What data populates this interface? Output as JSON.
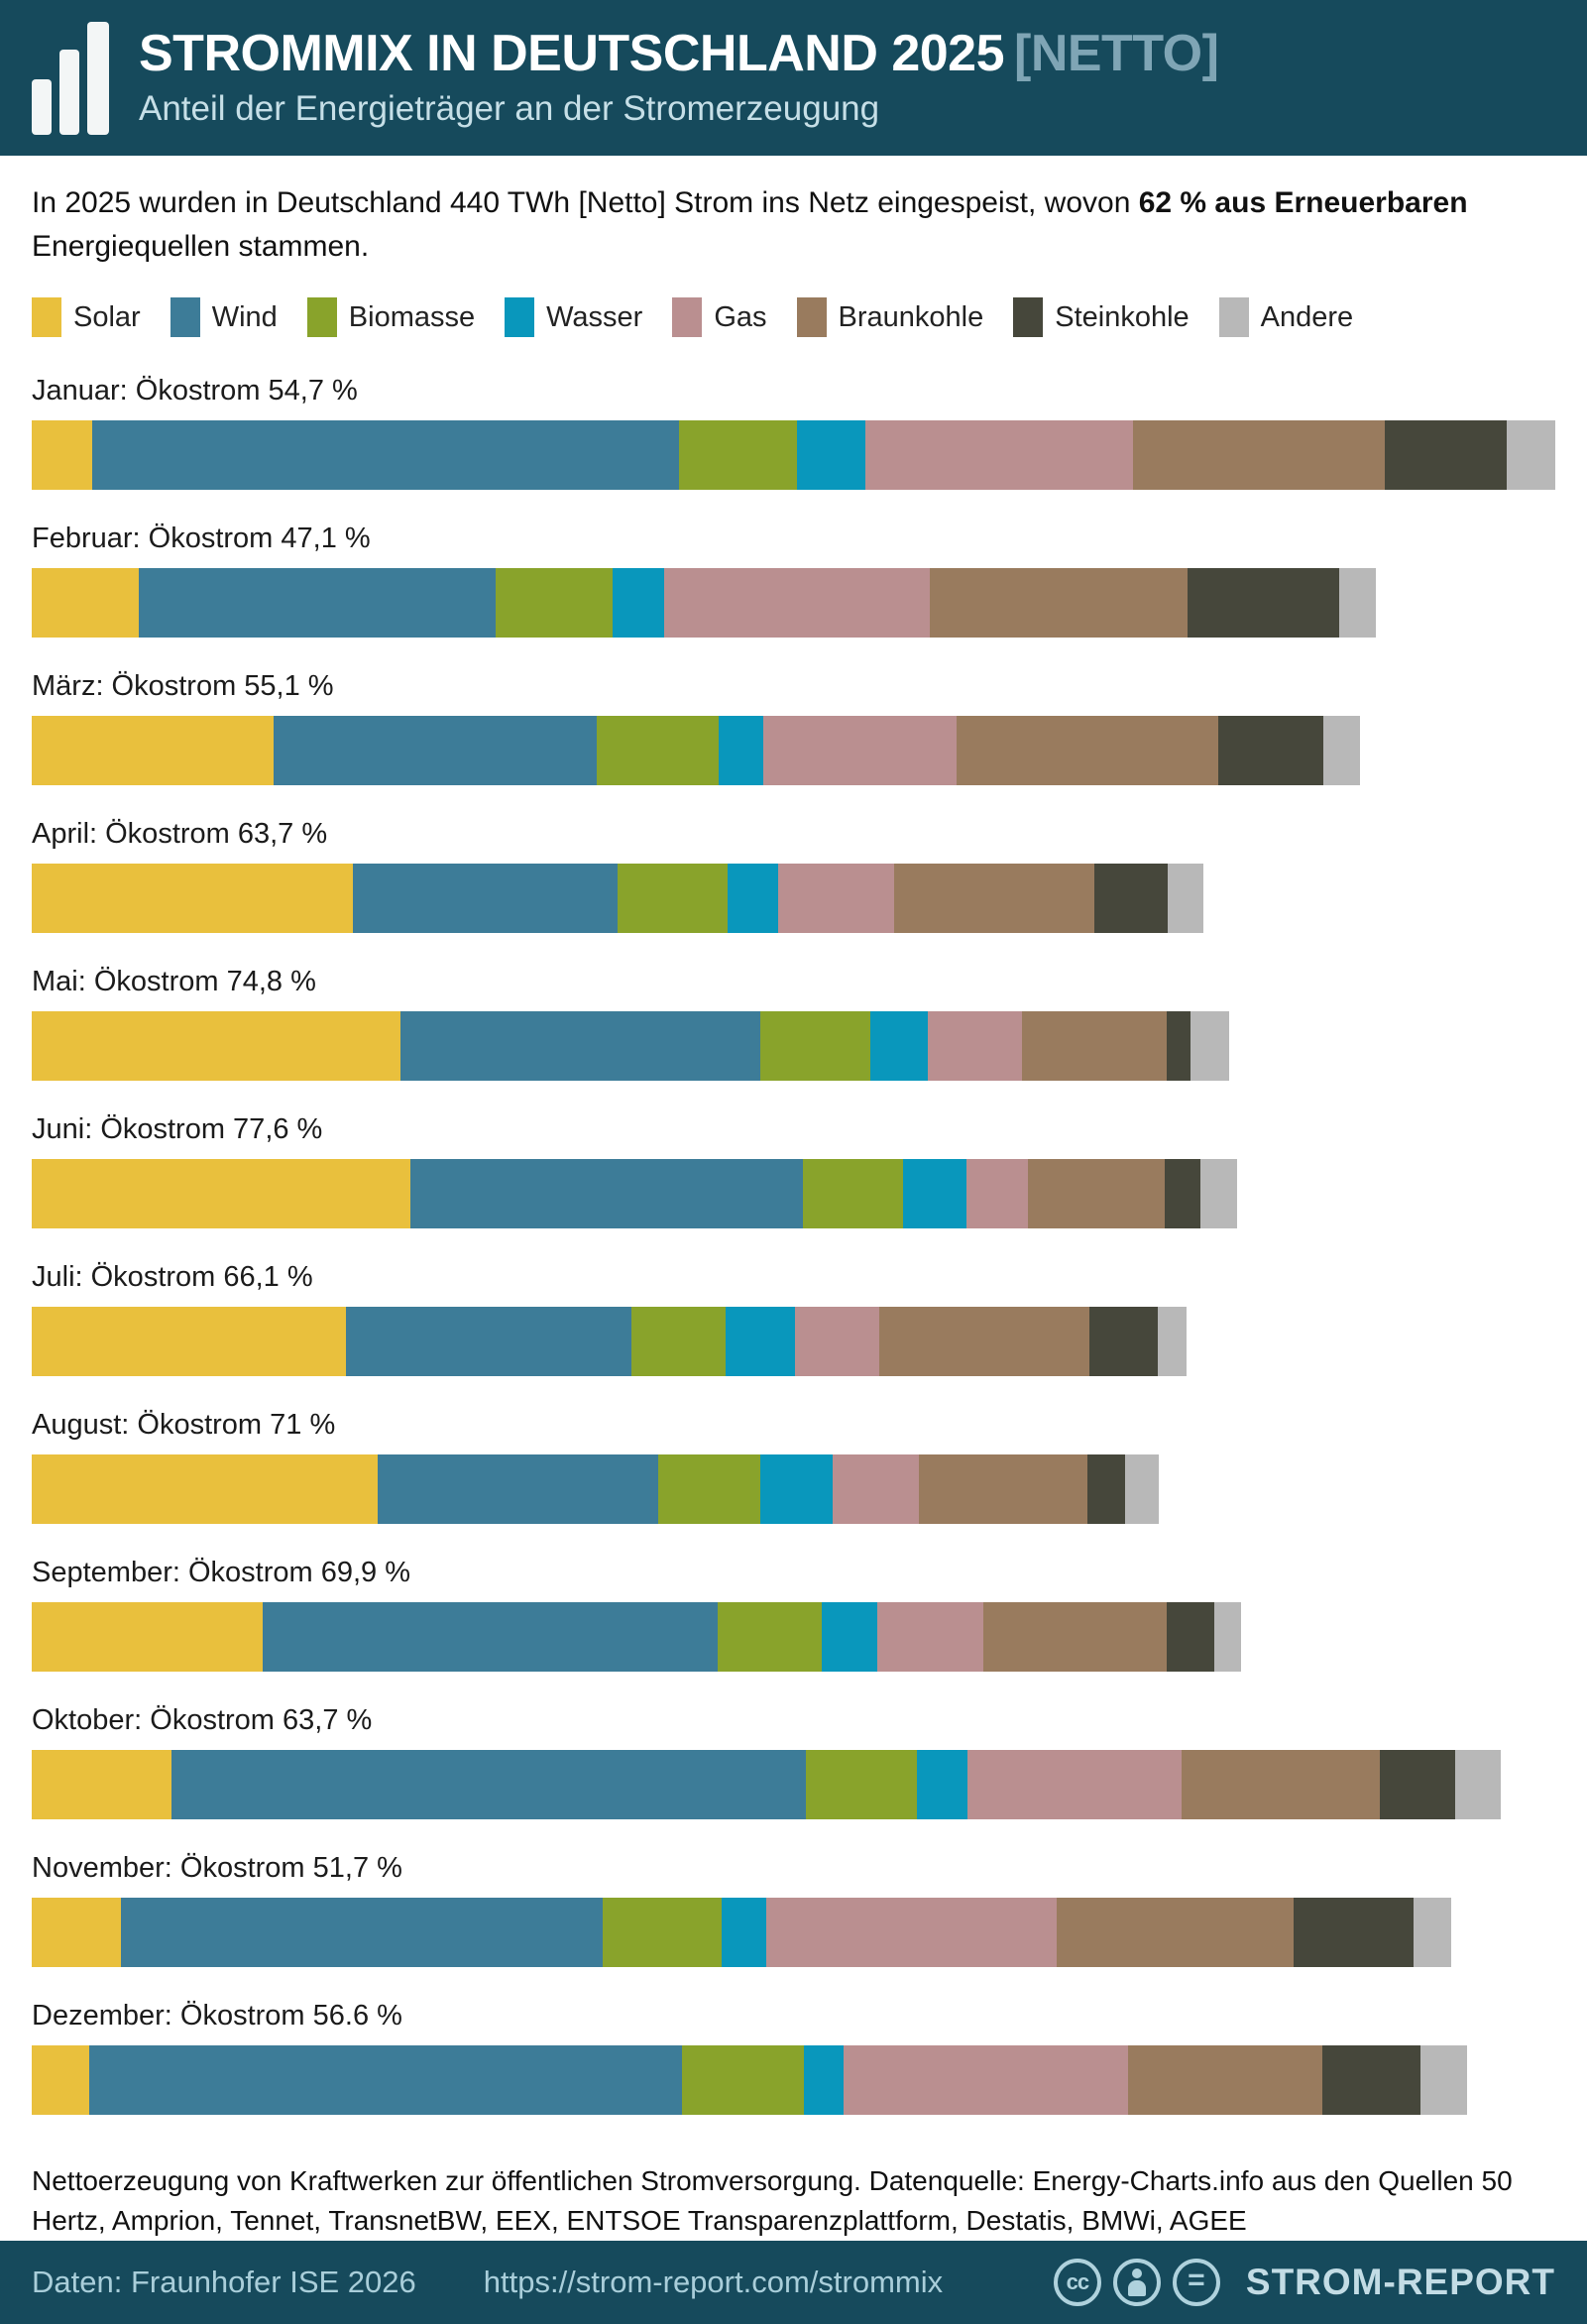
{
  "header": {
    "title": "STROMMIX IN DEUTSCHLAND 2025",
    "title_suffix": "[NETTO]",
    "subtitle": "Anteil der Energieträger an der Stromerzeugung"
  },
  "intro": {
    "part1": "In 2025 wurden in Deutschland 440 TWh [Netto] Strom ins Netz eingespeist, wovon ",
    "bold": "62 % aus Erneuerbaren",
    "part2": " Energiequellen stammen."
  },
  "legend": {
    "items": [
      {
        "key": "solar",
        "label": "Solar",
        "color": "#E9C03D"
      },
      {
        "key": "wind",
        "label": "Wind",
        "color": "#3D7C98"
      },
      {
        "key": "biomasse",
        "label": "Biomasse",
        "color": "#89A32B"
      },
      {
        "key": "wasser",
        "label": "Wasser",
        "color": "#0997BC"
      },
      {
        "key": "gas",
        "label": "Gas",
        "color": "#BA8F90"
      },
      {
        "key": "braunkohle",
        "label": "Braunkohle",
        "color": "#997B5E"
      },
      {
        "key": "steinkohle",
        "label": "Steinkohle",
        "color": "#46473B"
      },
      {
        "key": "andere",
        "label": "Andere",
        "color": "#B8B8B8"
      }
    ]
  },
  "chart_data": {
    "type": "bar",
    "stacked": true,
    "orientation": "horizontal",
    "note": "one stacked bar per month; segment values are % of that month's net generation; bar_width_pct is the bar length relative to the longest bar (Januar)",
    "series_names": [
      "Solar",
      "Wind",
      "Biomasse",
      "Wasser",
      "Gas",
      "Braunkohle",
      "Steinkohle",
      "Andere"
    ],
    "months": [
      {
        "label": "Januar: Ökostrom 54,7 %",
        "month": "Januar",
        "oekostrom_pct": 54.7,
        "bar_width_pct": 100,
        "shares": [
          4.0,
          38.5,
          7.7,
          4.5,
          17.6,
          16.5,
          8.0,
          3.2
        ]
      },
      {
        "label": "Februar: Ökostrom 47,1 %",
        "month": "Februar",
        "oekostrom_pct": 47.1,
        "bar_width_pct": 88.2,
        "shares": [
          8.0,
          26.5,
          8.7,
          3.9,
          19.7,
          19.2,
          11.3,
          2.7
        ]
      },
      {
        "label": "März: Ökostrom 55,1 %",
        "month": "März",
        "oekostrom_pct": 55.1,
        "bar_width_pct": 87.2,
        "shares": [
          18.2,
          24.3,
          9.2,
          3.4,
          14.5,
          19.7,
          7.9,
          2.8
        ]
      },
      {
        "label": "April: Ökostrom 63,7 %",
        "month": "April",
        "oekostrom_pct": 63.7,
        "bar_width_pct": 76.9,
        "shares": [
          27.4,
          22.6,
          9.4,
          4.3,
          9.9,
          17.1,
          6.3,
          3.0
        ]
      },
      {
        "label": "Mai: Ökostrom 74,8 %",
        "month": "Mai",
        "oekostrom_pct": 74.8,
        "bar_width_pct": 78.6,
        "shares": [
          30.8,
          30.0,
          9.2,
          4.8,
          7.9,
          12.1,
          2.0,
          3.2
        ]
      },
      {
        "label": "Juni: Ökostrom 77,6 %",
        "month": "Juni",
        "oekostrom_pct": 77.6,
        "bar_width_pct": 79.1,
        "shares": [
          31.4,
          32.6,
          8.3,
          5.3,
          5.1,
          11.3,
          3.0,
          3.0
        ]
      },
      {
        "label": "Juli: Ökostrom 66,1 %",
        "month": "Juli",
        "oekostrom_pct": 66.1,
        "bar_width_pct": 75.8,
        "shares": [
          27.2,
          24.7,
          8.2,
          6.0,
          7.3,
          18.2,
          5.9,
          2.5
        ]
      },
      {
        "label": "August: Ökostrom 71 %",
        "month": "August",
        "oekostrom_pct": 71.0,
        "bar_width_pct": 74.0,
        "shares": [
          30.7,
          24.9,
          9.0,
          6.4,
          7.7,
          14.9,
          3.4,
          3.0
        ]
      },
      {
        "label": "September: Ökostrom 69,9 %",
        "month": "September",
        "oekostrom_pct": 69.9,
        "bar_width_pct": 79.4,
        "shares": [
          19.1,
          37.6,
          8.6,
          4.6,
          8.8,
          15.1,
          4.0,
          2.2
        ]
      },
      {
        "label": "Oktober: Ökostrom 63,7 %",
        "month": "Oktober",
        "oekostrom_pct": 63.7,
        "bar_width_pct": 96.4,
        "shares": [
          9.5,
          43.2,
          7.6,
          3.4,
          14.6,
          13.5,
          5.1,
          3.1
        ]
      },
      {
        "label": "November: Ökostrom 51,7 %",
        "month": "November",
        "oekostrom_pct": 51.7,
        "bar_width_pct": 93.2,
        "shares": [
          6.3,
          33.9,
          8.4,
          3.1,
          20.5,
          16.7,
          8.4,
          2.7
        ]
      },
      {
        "label": "Dezember: Ökostrom 56.6 %",
        "month": "Dezember",
        "oekostrom_pct": 56.6,
        "bar_width_pct": 94.2,
        "shares": [
          4.0,
          41.3,
          8.5,
          2.8,
          19.8,
          13.5,
          6.9,
          3.2
        ]
      }
    ]
  },
  "source_note": "Nettoerzeugung von Kraftwerken zur öffentlichen Stromversorgung. Datenquelle: Energy-Charts.info aus den Quellen 50 Hertz, Amprion, Tennet, TransnetBW, EEX, ENTSOE Transparenzplattform, Destatis, BMWi, AGEE",
  "bottom_bar": {
    "data_credit": "Daten: Fraunhofer ISE 2026",
    "url": "https://strom-report.com/strommix",
    "license_badges": [
      "cc-icon",
      "attribution-person-icon",
      "no-derivatives-icon"
    ],
    "brand": "STROM-REPORT"
  },
  "colors": {
    "header_bg": "#164A5C",
    "title": "#FFFFFF",
    "title_suffix": "#7FA5B5",
    "subtitle": "#C6DFE7",
    "bottom_bar_text": "#A9CEDA"
  }
}
